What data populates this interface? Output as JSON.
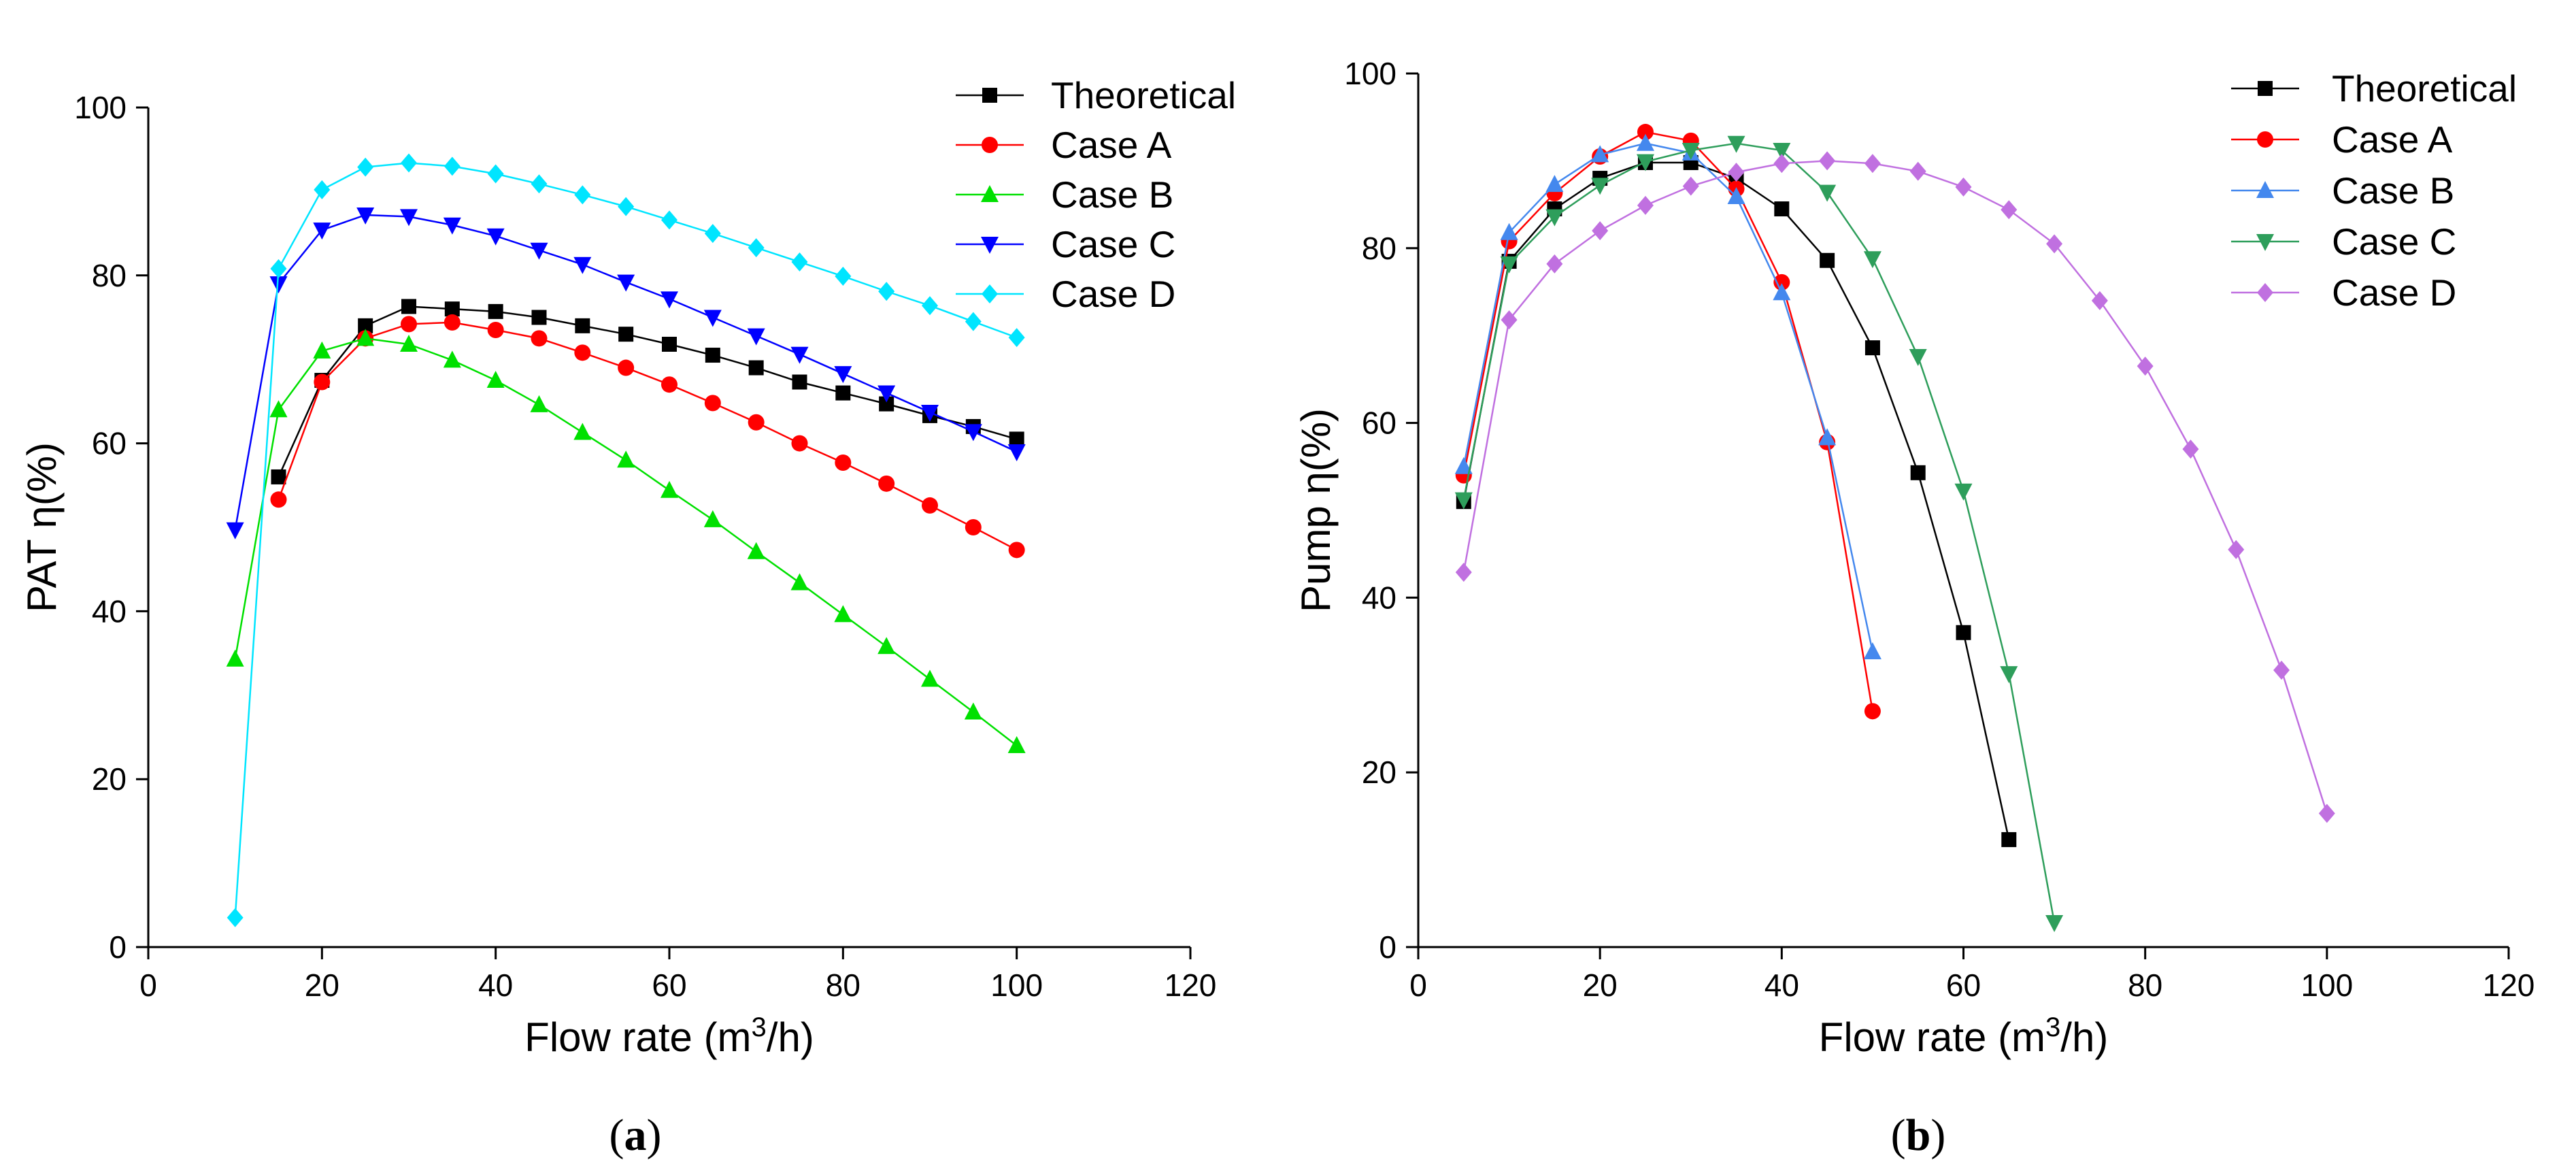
{
  "colors": {
    "Theoretical": "#000000",
    "Case A": "#ff0000",
    "Case B": "#00e000",
    "Case C": "#0000ff",
    "Case D": "#00e5ff",
    "Case B (b)": "#4488ee",
    "Case C (b)": "#2e9e5b",
    "Case D (b)": "#c070e0"
  },
  "chart_data": [
    {
      "panel": "(a)",
      "type": "line",
      "xlabel": "Flow rate (m3/h)",
      "ylabel": "PAT η(%)",
      "xlim": [
        0,
        120
      ],
      "ylim": [
        0,
        100
      ],
      "xticks": [
        0,
        20,
        40,
        60,
        80,
        100,
        120
      ],
      "yticks": [
        0,
        20,
        40,
        60,
        80,
        100
      ],
      "legend_position": "top-right",
      "grid": false,
      "series": [
        {
          "name": "Theoretical",
          "marker": "square",
          "color_key": "Theoretical",
          "x": [
            15,
            20,
            25,
            30,
            35,
            40,
            45,
            50,
            55,
            60,
            65,
            70,
            75,
            80,
            85,
            90,
            95,
            100
          ],
          "y": [
            56.0,
            67.5,
            74.0,
            76.3,
            76.0,
            75.7,
            75.0,
            74.0,
            73.0,
            71.8,
            70.5,
            69.0,
            67.3,
            66.0,
            64.7,
            63.3,
            62.0,
            60.5
          ]
        },
        {
          "name": "Case A",
          "marker": "circle",
          "color_key": "Case A",
          "x": [
            15,
            20,
            25,
            30,
            35,
            40,
            45,
            50,
            55,
            60,
            65,
            70,
            75,
            80,
            85,
            90,
            95,
            100
          ],
          "y": [
            53.3,
            67.3,
            72.5,
            74.2,
            74.4,
            73.5,
            72.5,
            70.8,
            69.0,
            67.0,
            64.8,
            62.5,
            60.0,
            57.7,
            55.2,
            52.6,
            50.0,
            47.3
          ]
        },
        {
          "name": "Case B",
          "marker": "triangle-up",
          "color_key": "Case B",
          "x": [
            10,
            15,
            20,
            25,
            30,
            35,
            40,
            45,
            50,
            55,
            60,
            65,
            70,
            75,
            80,
            85,
            90,
            95,
            100
          ],
          "y": [
            34.3,
            64.0,
            71.0,
            72.5,
            71.8,
            69.9,
            67.5,
            64.6,
            61.3,
            58.0,
            54.4,
            50.9,
            47.1,
            43.4,
            39.6,
            35.8,
            31.9,
            28.0,
            24.0
          ]
        },
        {
          "name": "Case C",
          "marker": "triangle-down",
          "color_key": "Case C",
          "x": [
            10,
            15,
            20,
            25,
            30,
            35,
            40,
            45,
            50,
            55,
            60,
            65,
            70,
            75,
            80,
            85,
            90,
            95,
            100
          ],
          "y": [
            49.7,
            79.0,
            85.4,
            87.2,
            87.0,
            86.0,
            84.7,
            83.0,
            81.3,
            79.2,
            77.2,
            75.0,
            72.8,
            70.6,
            68.3,
            66.0,
            63.7,
            61.4,
            59.0
          ]
        },
        {
          "name": "Case D",
          "marker": "diamond",
          "color_key": "Case D",
          "x": [
            10,
            15,
            20,
            25,
            30,
            35,
            40,
            45,
            50,
            55,
            60,
            65,
            70,
            75,
            80,
            85,
            90,
            95,
            100
          ],
          "y": [
            3.5,
            80.8,
            90.2,
            92.9,
            93.4,
            93.0,
            92.1,
            90.9,
            89.6,
            88.2,
            86.6,
            85.0,
            83.3,
            81.6,
            79.9,
            78.1,
            76.4,
            74.5,
            72.6
          ]
        }
      ]
    },
    {
      "panel": "(b)",
      "type": "line",
      "xlabel": "Flow rate (m3/h)",
      "ylabel": "Pump η(%)",
      "xlim": [
        0,
        120
      ],
      "ylim": [
        0,
        100
      ],
      "xticks": [
        0,
        20,
        40,
        60,
        80,
        100,
        120
      ],
      "yticks": [
        0,
        20,
        40,
        60,
        80,
        100
      ],
      "legend_position": "top-right",
      "grid": false,
      "series": [
        {
          "name": "Theoretical",
          "marker": "square",
          "color_key": "Theoretical",
          "x": [
            5,
            10,
            15,
            20,
            25,
            30,
            35,
            40,
            45,
            50,
            55,
            60,
            65
          ],
          "y": [
            51.0,
            78.5,
            84.5,
            88.0,
            89.8,
            89.8,
            88.0,
            84.5,
            78.6,
            68.6,
            54.3,
            36.0,
            12.3
          ]
        },
        {
          "name": "Case A",
          "marker": "circle",
          "color_key": "Case A",
          "x": [
            5,
            10,
            15,
            20,
            25,
            30,
            35,
            40,
            45,
            50
          ],
          "y": [
            54.0,
            80.8,
            86.3,
            90.5,
            93.3,
            92.3,
            86.8,
            76.1,
            57.8,
            27.0
          ]
        },
        {
          "name": "Case B",
          "marker": "triangle-up",
          "color_key": "Case B (b)",
          "x": [
            5,
            10,
            15,
            20,
            25,
            30,
            35,
            40,
            45,
            50
          ],
          "y": [
            55.0,
            81.8,
            87.3,
            90.7,
            92.0,
            90.9,
            85.9,
            74.9,
            58.3,
            33.8
          ]
        },
        {
          "name": "Case C",
          "marker": "triangle-down",
          "color_key": "Case C (b)",
          "x": [
            5,
            10,
            15,
            20,
            25,
            30,
            35,
            40,
            45,
            50,
            55,
            60,
            65,
            70
          ],
          "y": [
            51.2,
            78.2,
            83.6,
            87.2,
            89.9,
            91.2,
            92.0,
            91.2,
            86.4,
            78.8,
            67.6,
            52.2,
            31.3,
            2.8
          ]
        },
        {
          "name": "Case D",
          "marker": "diamond",
          "color_key": "Case D (b)",
          "x": [
            5,
            10,
            15,
            20,
            25,
            30,
            35,
            40,
            45,
            50,
            55,
            60,
            65,
            70,
            75,
            80,
            85,
            90,
            95,
            100
          ],
          "y": [
            42.9,
            71.8,
            78.2,
            82.0,
            84.9,
            87.1,
            88.7,
            89.7,
            90.0,
            89.7,
            88.8,
            87.0,
            84.4,
            80.5,
            74.0,
            66.5,
            57.0,
            45.5,
            31.7,
            15.3
          ]
        }
      ]
    }
  ],
  "labels": {
    "panel_a_open": "(",
    "panel_a_letter": "a",
    "panel_a_close": ")",
    "panel_b_open": "(",
    "panel_b_letter": "b",
    "panel_b_close": ")"
  }
}
